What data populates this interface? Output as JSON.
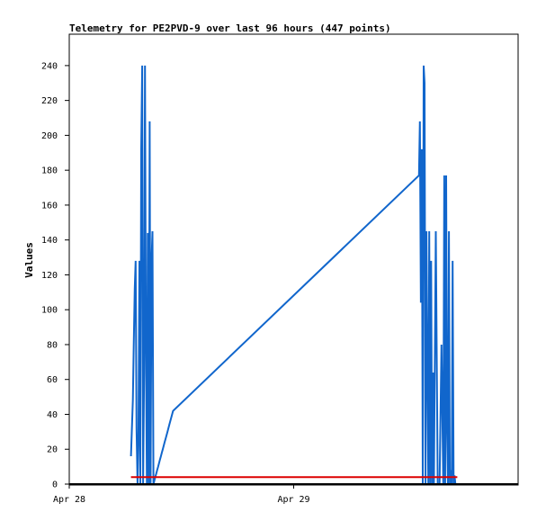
{
  "chart_data": {
    "type": "line",
    "title": "Telemetry for PE2PVD-9 over last 96 hours (447 points)",
    "xlabel": "",
    "ylabel": "Values",
    "x_ticks": [
      "Apr 28",
      "Apr 29"
    ],
    "y_ticks": [
      0,
      20,
      40,
      60,
      80,
      100,
      120,
      140,
      160,
      180,
      200,
      220,
      240
    ],
    "ylim": [
      0,
      258
    ],
    "xlim_hours": [
      0,
      48
    ],
    "grid": false,
    "legend": "none",
    "colors": {
      "series_main": "#1166cc",
      "series_flat": "#dd0000",
      "baseline": "#000000",
      "frame": "#000000"
    },
    "series": [
      {
        "x_hours": [
          6.6,
          6.8,
          6.9,
          7.0,
          7.1,
          7.2,
          7.3,
          7.4,
          7.5,
          7.6,
          7.7,
          7.8,
          7.9,
          8.0,
          8.1,
          8.2,
          8.3,
          8.4,
          8.5,
          8.6,
          8.7,
          8.8,
          8.9,
          9.0,
          9.1,
          9.2,
          9.3,
          9.4,
          9.5,
          9.6,
          9.7,
          9.8,
          9.9,
          10.0,
          10.1,
          10.2,
          10.3,
          10.5,
          10.7,
          10.9,
          11.1,
          37.4,
          37.5,
          37.6,
          37.7,
          37.8,
          37.9,
          38.0,
          38.1,
          38.2,
          38.3,
          38.4,
          38.5,
          38.6,
          38.7,
          38.8,
          38.9,
          39.0,
          39.2,
          39.4,
          39.6,
          39.8,
          40.0,
          40.1,
          40.2,
          40.3,
          40.4,
          40.5,
          40.6,
          40.7,
          40.8,
          40.9,
          41.0,
          41.1,
          41.2,
          41.3
        ],
        "values": [
          16,
          48,
          80,
          112,
          128,
          32,
          0,
          24,
          128,
          0,
          192,
          240,
          0,
          64,
          240,
          80,
          0,
          144,
          0,
          208,
          0,
          128,
          145,
          0,
          2,
          4,
          6,
          8,
          10,
          12,
          14,
          16,
          18,
          20,
          22,
          24,
          26,
          30,
          34,
          38,
          42,
          177,
          208,
          104,
          192,
          0,
          240,
          230,
          0,
          145,
          64,
          0,
          145,
          0,
          128,
          0,
          64,
          0,
          145,
          0,
          0,
          80,
          0,
          177,
          0,
          177,
          32,
          0,
          145,
          0,
          8,
          0,
          128,
          0,
          5,
          0
        ]
      },
      {
        "x_hours": [
          6.6,
          41.5
        ],
        "values": [
          4,
          4
        ]
      }
    ]
  }
}
